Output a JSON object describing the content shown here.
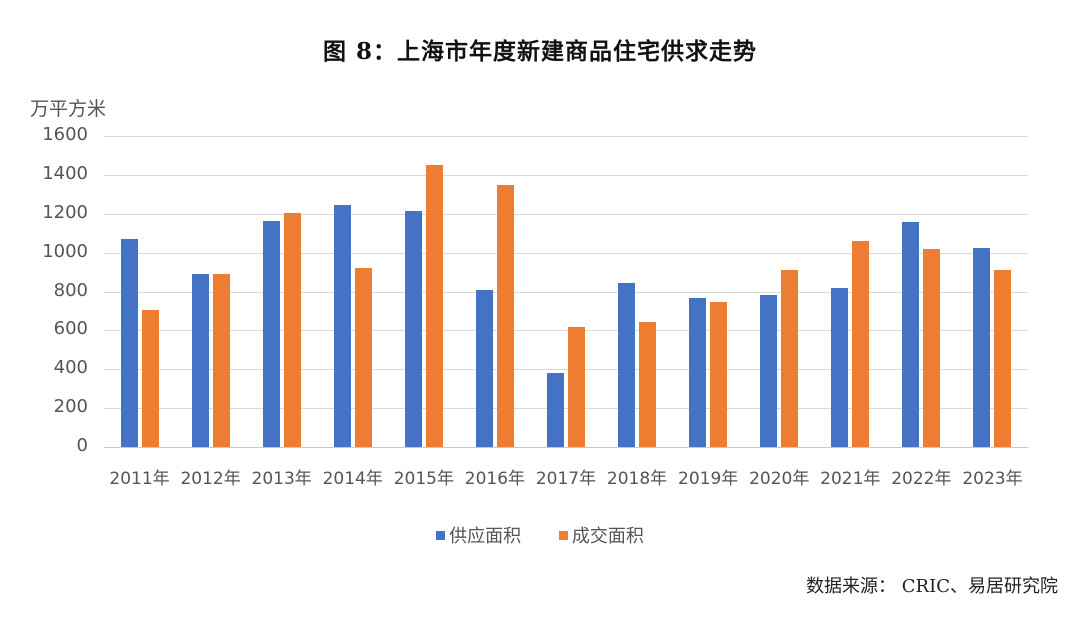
{
  "title": "图 8：上海市年度新建商品住宅供求走势",
  "unit_label": "万平方米",
  "source": "数据来源： CRIC、易居研究院",
  "colors": {
    "supply": "#4472C4",
    "sales": "#ED7D31"
  },
  "legend": [
    {
      "name": "供应面积",
      "color": "#4472C4"
    },
    {
      "name": "成交面积",
      "color": "#ED7D31"
    }
  ],
  "y_ticks": [
    "1600",
    "1400",
    "1200",
    "1000",
    "800",
    "600",
    "400",
    "200",
    "0"
  ],
  "chart_data": {
    "type": "bar",
    "title": "图 8：上海市年度新建商品住宅供求走势",
    "xlabel": "",
    "ylabel": "万平方米",
    "ylim": [
      0,
      1600
    ],
    "yticks": [
      0,
      200,
      400,
      600,
      800,
      1000,
      1200,
      1400,
      1600
    ],
    "grid": true,
    "legend_position": "bottom",
    "categories": [
      "2011年",
      "2012年",
      "2013年",
      "2014年",
      "2015年",
      "2016年",
      "2017年",
      "2018年",
      "2019年",
      "2020年",
      "2021年",
      "2022年",
      "2023年"
    ],
    "series": [
      {
        "name": "供应面积",
        "color": "#4472C4",
        "values": [
          1070,
          890,
          1163,
          1245,
          1214,
          808,
          381,
          844,
          766,
          782,
          818,
          1157,
          1024
        ]
      },
      {
        "name": "成交面积",
        "color": "#ED7D31",
        "values": [
          705,
          890,
          1204,
          920,
          1450,
          1348,
          617,
          643,
          746,
          910,
          1060,
          1018,
          910
        ]
      }
    ],
    "source": "数据来源： CRIC、易居研究院"
  }
}
